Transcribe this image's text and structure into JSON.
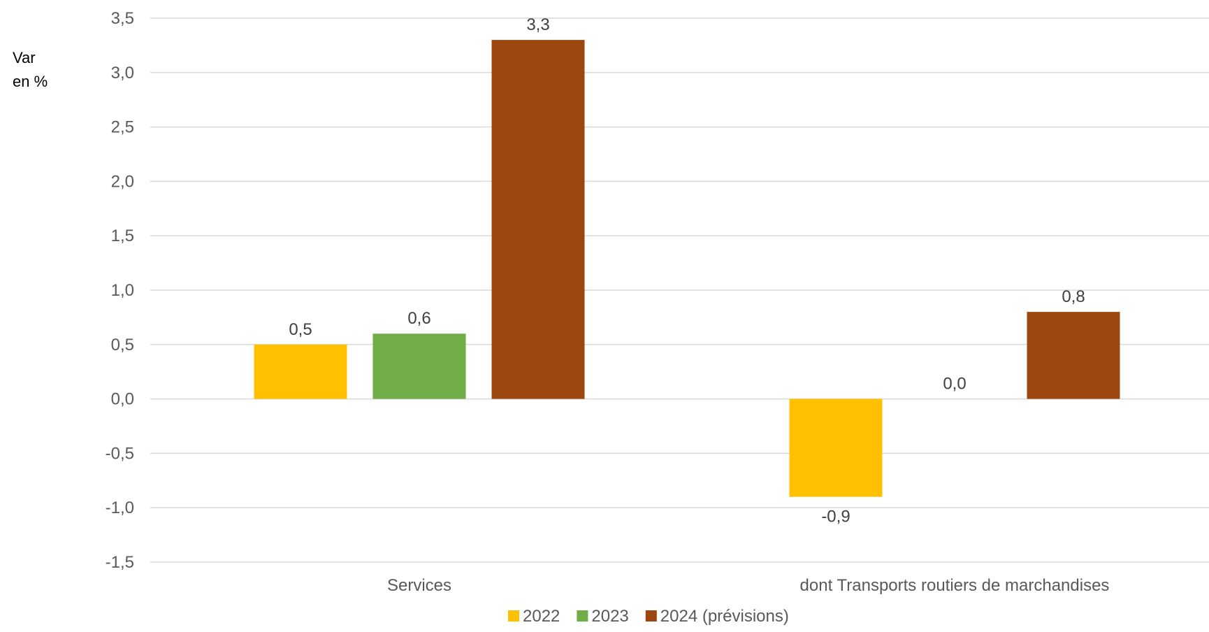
{
  "chart_data": {
    "type": "bar",
    "ylabel_lines": [
      "Var",
      "en %"
    ],
    "categories": [
      "Services",
      "dont Transports routiers de marchandises"
    ],
    "series": [
      {
        "name": "2022",
        "color": "#FFC000",
        "values": [
          0.5,
          -0.9
        ]
      },
      {
        "name": "2023",
        "color": "#70AD47",
        "values": [
          0.6,
          0.0
        ]
      },
      {
        "name": "2024 (prévisions)",
        "color": "#9C470E",
        "values": [
          3.3,
          0.8
        ]
      }
    ],
    "data_labels": [
      [
        "0,5",
        "-0,9"
      ],
      [
        "0,6",
        "0,0"
      ],
      [
        "3,3",
        "0,8"
      ]
    ],
    "ylim": [
      -1.5,
      3.5
    ],
    "ytick_values": [
      -1.5,
      -1.0,
      -0.5,
      0.0,
      0.5,
      1.0,
      1.5,
      2.0,
      2.5,
      3.0,
      3.5
    ],
    "ytick_labels": [
      "-1,5",
      "-1,0",
      "-0,5",
      "0,0",
      "0,5",
      "1,0",
      "1,5",
      "2,0",
      "2,5",
      "3,0",
      "3,5"
    ],
    "grid": true,
    "legend_position": "bottom"
  }
}
